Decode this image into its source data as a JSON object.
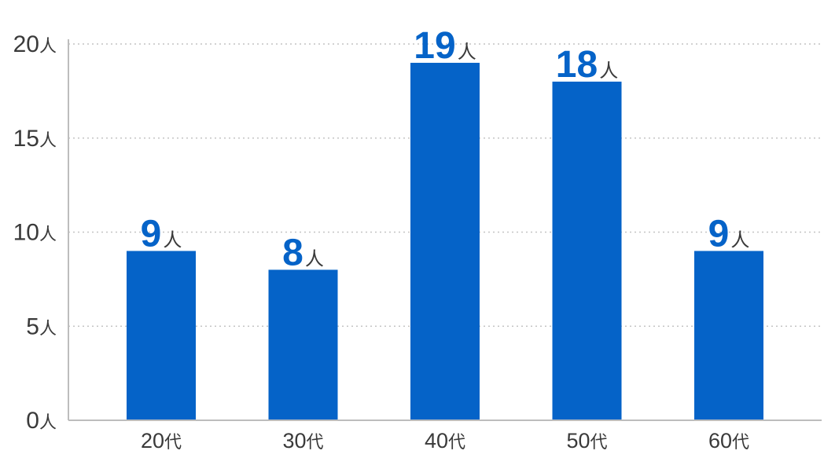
{
  "chart_data": {
    "type": "bar",
    "categories": [
      "20",
      "30",
      "40",
      "50",
      "60"
    ],
    "category_unit": "代",
    "values": [
      9,
      8,
      19,
      18,
      9
    ],
    "value_unit": "人",
    "y_ticks": [
      0,
      5,
      10,
      15,
      20
    ],
    "ylim": [
      0,
      20
    ],
    "grid": true,
    "bar_color": "#0563c8",
    "title": "",
    "xlabel": "",
    "ylabel": ""
  }
}
